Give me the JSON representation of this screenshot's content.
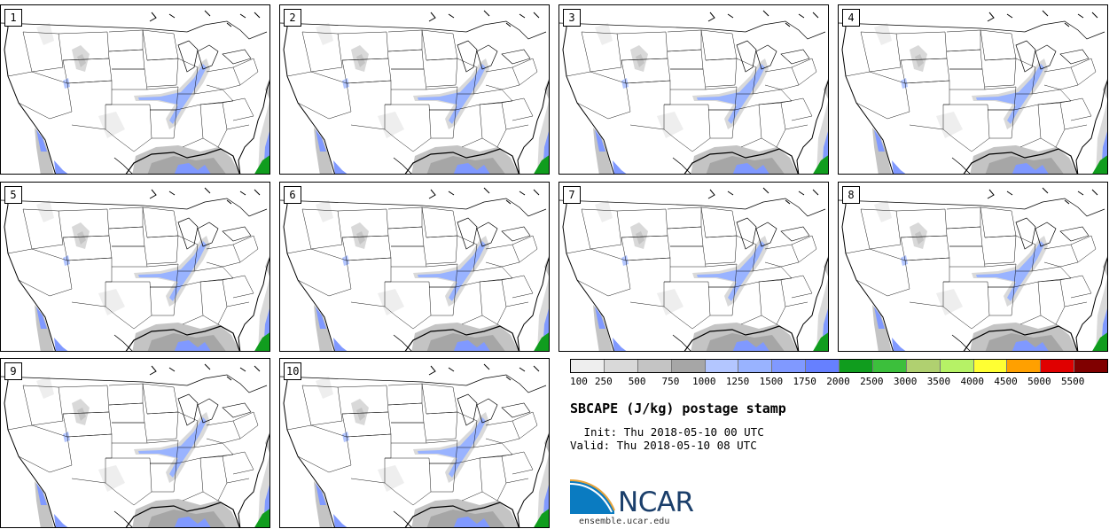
{
  "panels": [
    {
      "label": "1"
    },
    {
      "label": "2"
    },
    {
      "label": "3"
    },
    {
      "label": "4"
    },
    {
      "label": "5"
    },
    {
      "label": "6"
    },
    {
      "label": "7"
    },
    {
      "label": "8"
    },
    {
      "label": "9"
    },
    {
      "label": "10"
    }
  ],
  "colorbar": {
    "colors": [
      "#eeeeee",
      "#d9d9d9",
      "#c4c4c4",
      "#a6a6a6",
      "#b3c6ff",
      "#99b3ff",
      "#8099ff",
      "#6680ff",
      "#109d1e",
      "#3cbf3c",
      "#b0d070",
      "#b6f266",
      "#ffff33",
      "#ffa000",
      "#e00000",
      "#800000"
    ],
    "ticks": [
      "100",
      "250",
      "500",
      "750",
      "1000",
      "1250",
      "1500",
      "1750",
      "2000",
      "2500",
      "3000",
      "3500",
      "4000",
      "4500",
      "5000",
      "5500"
    ]
  },
  "title": "SBCAPE (J/kg) postage stamp",
  "init": " Init: Thu 2018-05-10 00 UTC",
  "valid": "Valid: Thu 2018-05-10 08 UTC",
  "logo": {
    "text": "NCAR",
    "url": "ensemble.ucar.edu"
  }
}
